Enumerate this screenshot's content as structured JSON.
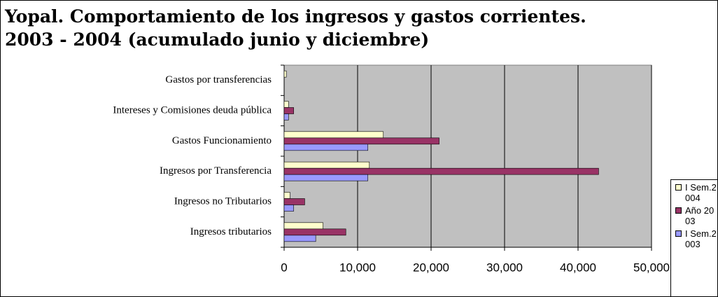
{
  "chart_data": {
    "type": "barh",
    "title_lines": [
      "Yopal. Comportamiento de los ingresos y gastos corrientes.",
      "2003 - 2004 (acumulado junio y diciembre)"
    ],
    "categories": [
      "Gastos por transferencias",
      "Intereses y Comisiones deuda pública",
      "Gastos Funcionamiento",
      "Ingresos por Transferencia",
      "Ingresos no Tributarios",
      "Ingresos tributarios"
    ],
    "series": [
      {
        "name": "I Sem.2004",
        "color": "#ffffcc",
        "values": [
          300,
          600,
          13500,
          11600,
          800,
          5300
        ]
      },
      {
        "name": "Año 2003",
        "color": "#993366",
        "values": [
          0,
          1300,
          21100,
          42800,
          2800,
          8400
        ]
      },
      {
        "name": "I Sem.2003",
        "color": "#9999ff",
        "values": [
          0,
          600,
          11400,
          11400,
          1300,
          4300
        ]
      }
    ],
    "xlim": [
      0,
      50000
    ],
    "xticks": [
      0,
      {
        "value": 10000,
        "label": "10,000"
      },
      {
        "value": 20000,
        "label": "20,000"
      },
      {
        "value": 30000,
        "label": "30,000"
      },
      {
        "value": 40000,
        "label": "40,000"
      },
      {
        "value": 50000,
        "label": "50,000"
      }
    ],
    "grid": true,
    "background": "#c0c0c0",
    "legend": "right"
  }
}
